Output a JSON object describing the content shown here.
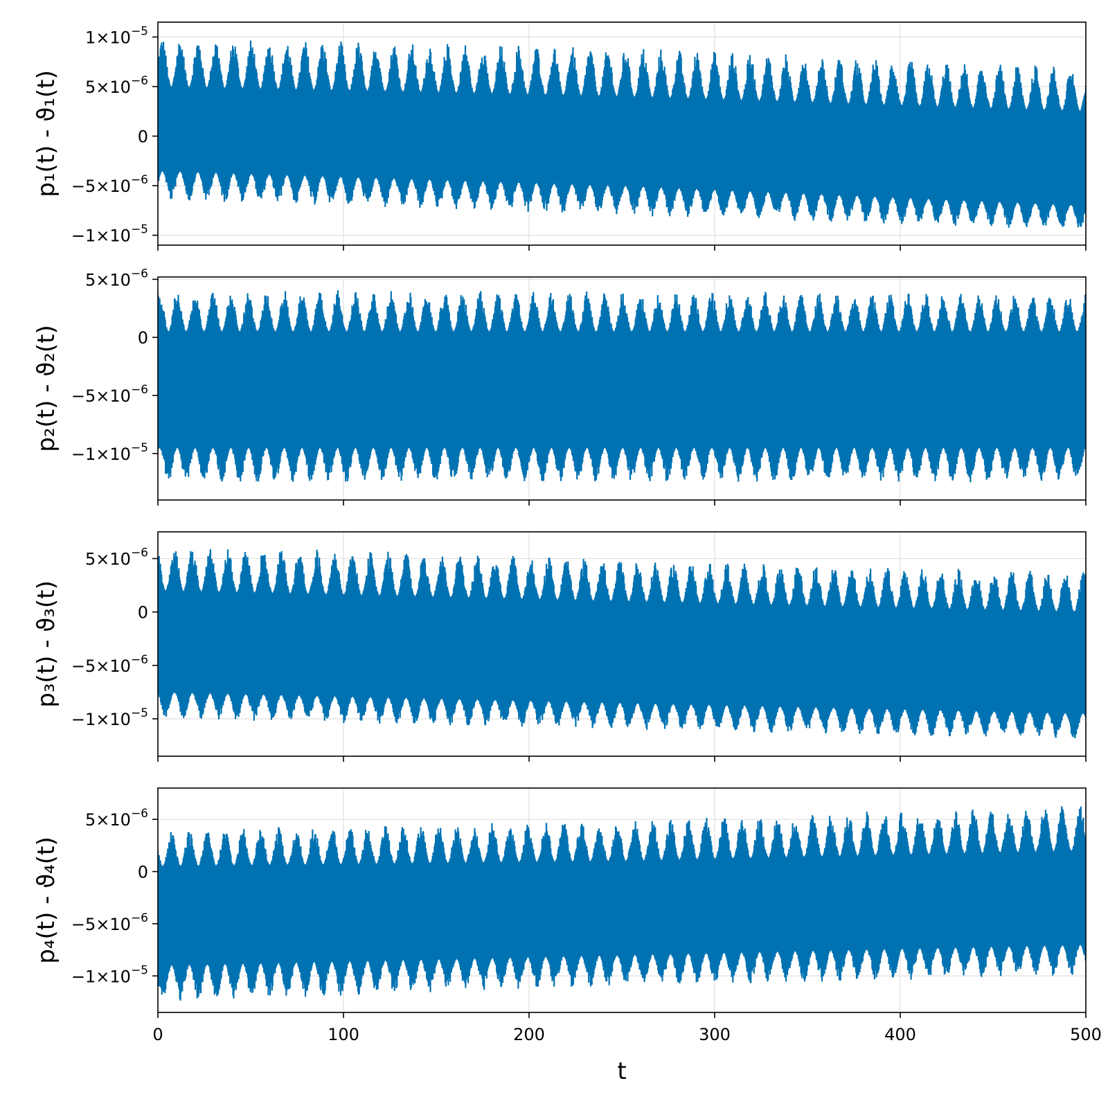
{
  "chart_data": [
    {
      "type": "line",
      "ylabel": "p₁(t) - ϑ₁(t)",
      "xlim": [
        0,
        500
      ],
      "ylim": [
        -1.1e-05,
        1.15e-05
      ],
      "yticks": [
        {
          "value": 1e-05,
          "mant": "1×10",
          "exp": "−5"
        },
        {
          "value": 5e-06,
          "mant": "5×10",
          "exp": "−6"
        },
        {
          "value": 0,
          "mant": "0",
          "exp": ""
        },
        {
          "value": -5e-06,
          "mant": "−5×10",
          "exp": "−6"
        },
        {
          "value": -1e-05,
          "mant": "−1×10",
          "exp": "−5"
        }
      ],
      "series": [
        {
          "envelope": {
            "t": [
              0,
              250,
              500
            ],
            "upper": [
              1e-05,
              9e-06,
              7e-06
            ],
            "lower": [
              -6.5e-06,
              -8e-06,
              -9.5e-06
            ],
            "mid_upper": [
              5e-06,
              4e-06,
              2.5e-06
            ],
            "mid_lower": [
              -3.5e-06,
              -5e-06,
              -7e-06
            ]
          }
        }
      ]
    },
    {
      "type": "line",
      "ylabel": "p₂(t) - ϑ₂(t)",
      "xlim": [
        0,
        500
      ],
      "ylim": [
        -1.4e-05,
        5.2e-06
      ],
      "yticks": [
        {
          "value": 5e-06,
          "mant": "5×10",
          "exp": "−6"
        },
        {
          "value": 0,
          "mant": "0",
          "exp": ""
        },
        {
          "value": -5e-06,
          "mant": "−5×10",
          "exp": "−6"
        },
        {
          "value": -1e-05,
          "mant": "−1×10",
          "exp": "−5"
        }
      ],
      "series": [
        {
          "envelope": {
            "t": [
              0,
              250,
              500
            ],
            "upper": [
              4.2e-06,
              4e-06,
              3.8e-06
            ],
            "lower": [
              -1.25e-05,
              -1.25e-05,
              -1.25e-05
            ],
            "mid_upper": [
              5e-07,
              5e-07,
              5e-07
            ],
            "mid_lower": [
              -9.5e-06,
              -9.5e-06,
              -9.5e-06
            ]
          }
        }
      ]
    },
    {
      "type": "line",
      "ylabel": "p₃(t) - ϑ₃(t)",
      "xlim": [
        0,
        500
      ],
      "ylim": [
        -1.35e-05,
        7.5e-06
      ],
      "yticks": [
        {
          "value": 5e-06,
          "mant": "5×10",
          "exp": "−6"
        },
        {
          "value": 0,
          "mant": "0",
          "exp": ""
        },
        {
          "value": -5e-06,
          "mant": "−5×10",
          "exp": "−6"
        },
        {
          "value": -1e-05,
          "mant": "−1×10",
          "exp": "−5"
        }
      ],
      "series": [
        {
          "envelope": {
            "t": [
              0,
              250,
              500
            ],
            "upper": [
              6.3e-06,
              5e-06,
              3.8e-06
            ],
            "lower": [
              -1e-05,
              -1.1e-05,
              -1.2e-05
            ],
            "mid_upper": [
              2e-06,
              1e-06,
              0.0
            ],
            "mid_lower": [
              -7.5e-06,
              -8.5e-06,
              -9.5e-06
            ]
          }
        }
      ]
    },
    {
      "type": "line",
      "ylabel": "p₄(t) - ϑ₄(t)",
      "xlabel": "t",
      "xlim": [
        0,
        500
      ],
      "ylim": [
        -1.35e-05,
        8e-06
      ],
      "xticks": [
        0,
        100,
        200,
        300,
        400,
        500
      ],
      "yticks": [
        {
          "value": 5e-06,
          "mant": "5×10",
          "exp": "−6"
        },
        {
          "value": 0,
          "mant": "0",
          "exp": ""
        },
        {
          "value": -5e-06,
          "mant": "−5×10",
          "exp": "−6"
        },
        {
          "value": -1e-05,
          "mant": "−1×10",
          "exp": "−5"
        }
      ],
      "series": [
        {
          "envelope": {
            "t": [
              0,
              250,
              500
            ],
            "upper": [
              4e-06,
              5e-06,
              6.5e-06
            ],
            "lower": [
              -1.25e-05,
              -1.1e-05,
              -1e-05
            ],
            "mid_upper": [
              5e-07,
              1e-06,
              2e-06
            ],
            "mid_lower": [
              -9e-06,
              -8e-06,
              -7e-06
            ]
          }
        }
      ]
    }
  ],
  "colors": {
    "series": "#0072b2",
    "grid": "#e0e0e0",
    "axis": "#000000"
  },
  "shared_xticks": [
    "0",
    "100",
    "200",
    "300",
    "400",
    "500"
  ],
  "xlabel": "t"
}
